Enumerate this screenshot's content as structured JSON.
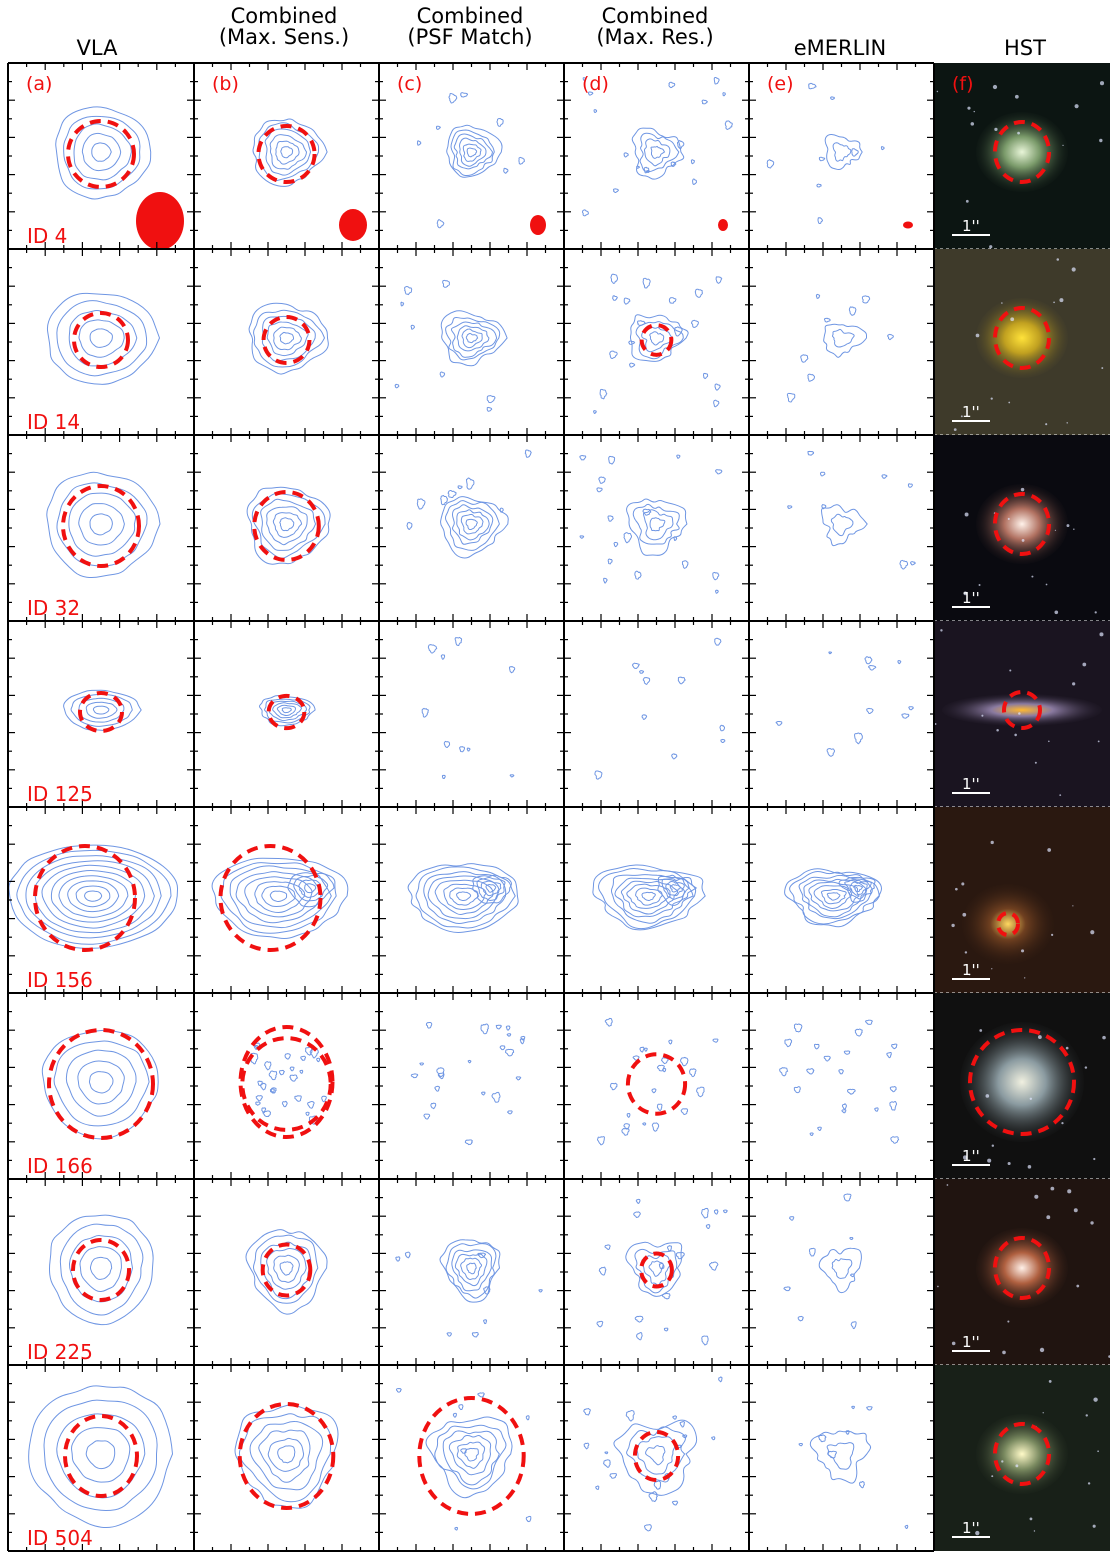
{
  "columns": [
    {
      "id": "vla",
      "lines": [
        "VLA"
      ]
    },
    {
      "id": "max-sens",
      "lines": [
        "Combined",
        "(Max. Sens.)"
      ]
    },
    {
      "id": "psf-match",
      "lines": [
        "Combined",
        "(PSF Match)"
      ]
    },
    {
      "id": "max-res",
      "lines": [
        "Combined",
        "(Max. Res.)"
      ]
    },
    {
      "id": "emerlin",
      "lines": [
        "eMERLIN"
      ]
    },
    {
      "id": "hst",
      "lines": [
        "HST"
      ]
    }
  ],
  "panel_letters": [
    "(a)",
    "(b)",
    "(c)",
    "(d)",
    "(e)",
    "(f)"
  ],
  "scale_bar_label": "1''",
  "rows": [
    {
      "id": "ID 4",
      "hst_bg": "#0c1512",
      "hst_core": "#e8f5d8",
      "hst_glow": "#7a9a6a"
    },
    {
      "id": "ID 14",
      "hst_bg": "#3e3a2a",
      "hst_core": "#ffe23a",
      "hst_glow": "#c0a020"
    },
    {
      "id": "ID 32",
      "hst_bg": "#0a0a10",
      "hst_core": "#fff2ea",
      "hst_glow": "#b07060"
    },
    {
      "id": "ID 125",
      "hst_bg": "#1a1420",
      "hst_core": "#ffb830",
      "hst_glow": "#8a7aa0"
    },
    {
      "id": "ID 156",
      "hst_bg": "#2a1810",
      "hst_core": "#ffd860",
      "hst_glow": "#704020"
    },
    {
      "id": "ID 166",
      "hst_bg": "#101010",
      "hst_core": "#f0f0e0",
      "hst_glow": "#8a9aa0"
    },
    {
      "id": "ID 225",
      "hst_bg": "#201410",
      "hst_core": "#fff0e8",
      "hst_glow": "#b06040"
    },
    {
      "id": "ID 504",
      "hst_bg": "#182018",
      "hst_core": "#fffac8",
      "hst_glow": "#7a8a60"
    }
  ],
  "colors": {
    "contour": "#6f96e3",
    "marker": "#f01010",
    "frame": "#000000"
  }
}
